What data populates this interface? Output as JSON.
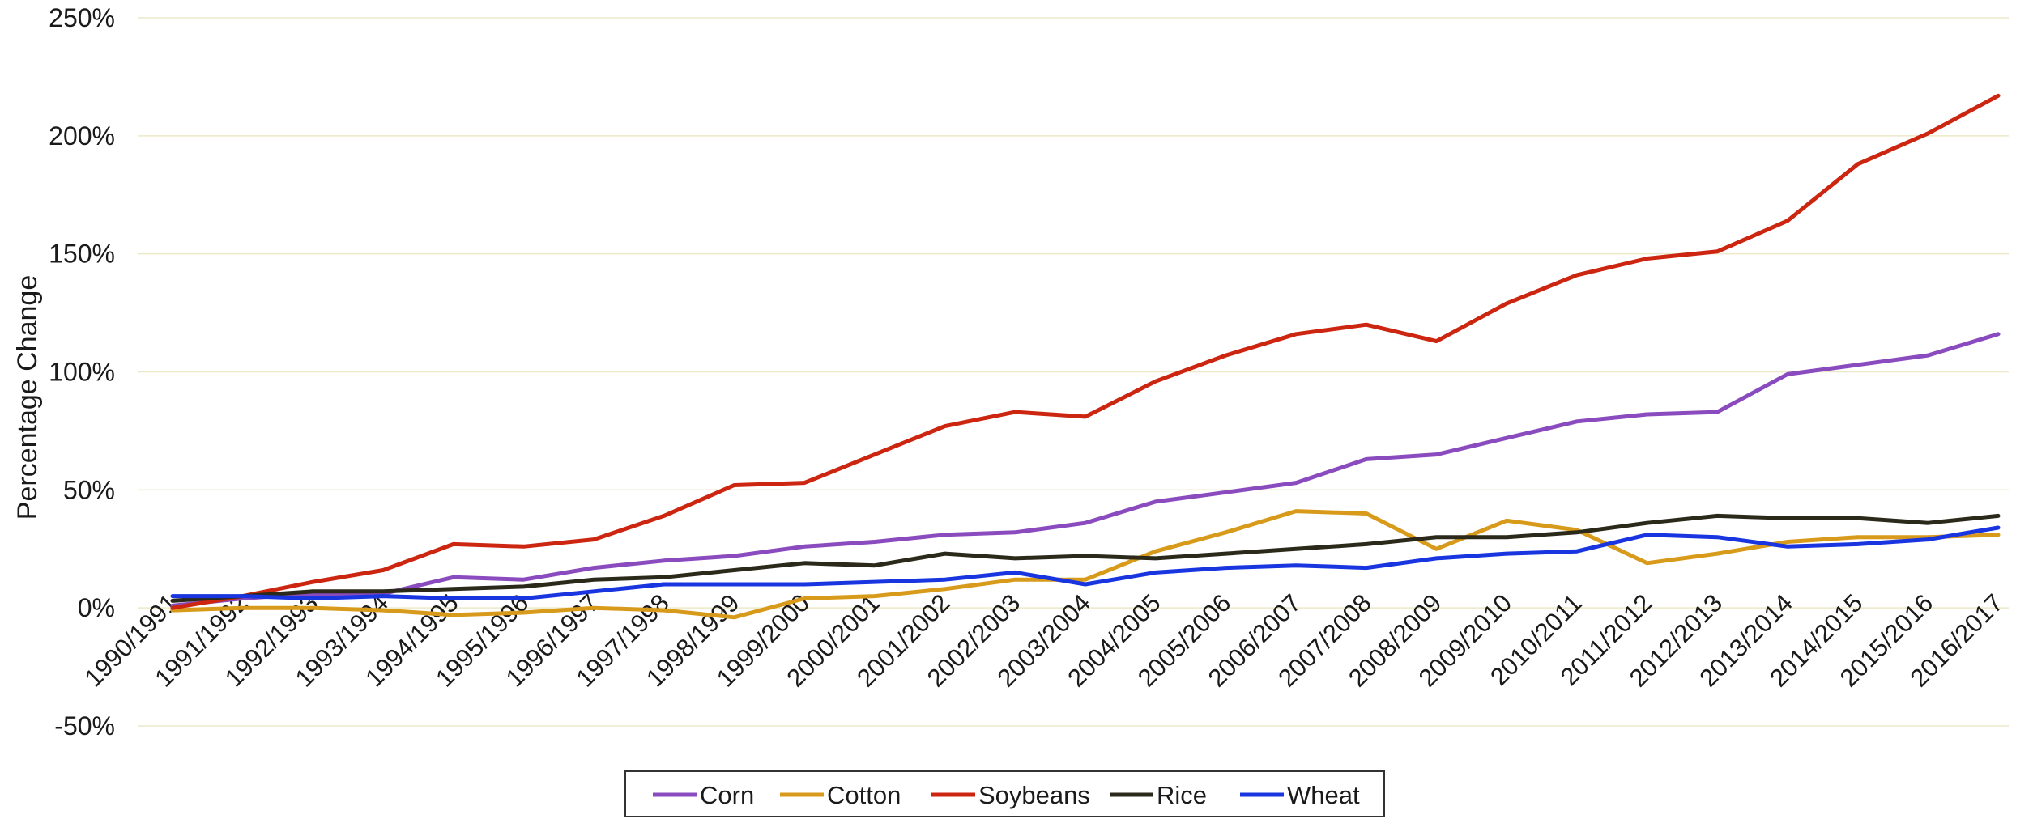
{
  "chart_data": {
    "type": "line",
    "title": "",
    "xlabel": "",
    "ylabel": "Percentage Change",
    "y_unit": "%",
    "ylim": [
      -50,
      250
    ],
    "yticks": [
      -50,
      0,
      50,
      100,
      150,
      200,
      250
    ],
    "ytick_labels": [
      "-50%",
      "0%",
      "50%",
      "100%",
      "150%",
      "200%",
      "250%"
    ],
    "grid": "horizontal",
    "legend_position": "bottom",
    "categories": [
      "1990/1991",
      "1991/1992",
      "1992/1993",
      "1993/1994",
      "1994/1995",
      "1995/1996",
      "1996/1997",
      "1997/1998",
      "1998/1999",
      "1999/2000",
      "2000/2001",
      "2001/2002",
      "2002/2003",
      "2003/2004",
      "2004/2005",
      "2005/2006",
      "2006/2007",
      "2007/2008",
      "2008/2009",
      "2009/2010",
      "2010/2011",
      "2011/2012",
      "2012/2013",
      "2013/2014",
      "2014/2015",
      "2015/2016",
      "2016/2017"
    ],
    "series": [
      {
        "name": "Corn",
        "color": "#8a4bbf",
        "values": [
          1,
          4,
          6,
          6,
          13,
          12,
          17,
          20,
          22,
          26,
          28,
          31,
          32,
          36,
          45,
          49,
          53,
          63,
          65,
          72,
          79,
          82,
          83,
          99,
          103,
          107,
          116
        ]
      },
      {
        "name": "Cotton",
        "color": "#d89a1a",
        "values": [
          -1,
          0,
          0,
          -1,
          -3,
          -2,
          0,
          -1,
          -4,
          4,
          5,
          8,
          12,
          12,
          24,
          32,
          41,
          40,
          25,
          37,
          33,
          19,
          23,
          28,
          30,
          30,
          31
        ]
      },
      {
        "name": "Soybeans",
        "color": "#cc2510",
        "values": [
          0,
          5,
          11,
          16,
          27,
          26,
          29,
          39,
          52,
          53,
          65,
          77,
          83,
          81,
          96,
          107,
          116,
          120,
          113,
          129,
          141,
          148,
          151,
          164,
          188,
          201,
          217
        ]
      },
      {
        "name": "Rice",
        "color": "#2b2a1a",
        "values": [
          3,
          5,
          7,
          7,
          8,
          9,
          12,
          13,
          16,
          19,
          18,
          23,
          21,
          22,
          21,
          23,
          25,
          27,
          30,
          30,
          32,
          36,
          39,
          38,
          38,
          36,
          39
        ]
      },
      {
        "name": "Wheat",
        "color": "#1835e0",
        "values": [
          5,
          5,
          4,
          5,
          4,
          4,
          7,
          10,
          10,
          10,
          11,
          12,
          15,
          10,
          15,
          17,
          18,
          17,
          21,
          23,
          24,
          31,
          30,
          26,
          27,
          29,
          34
        ]
      }
    ]
  }
}
